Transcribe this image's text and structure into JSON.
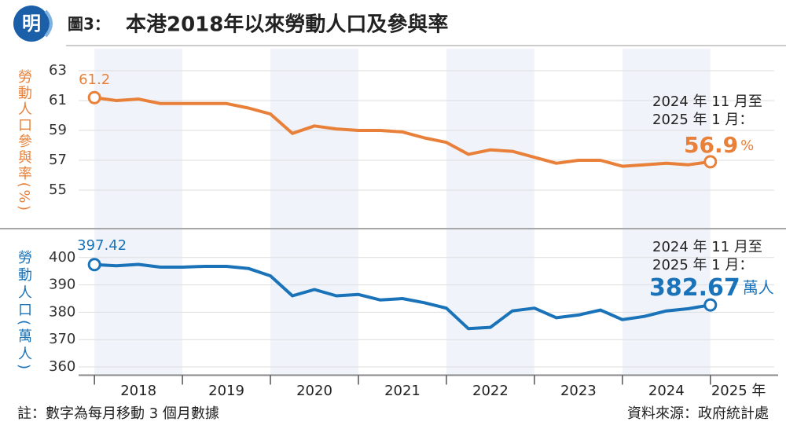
{
  "header": {
    "logo": "明",
    "figure": "圖3：",
    "title": "本港2018年以來勞動人口及參與率"
  },
  "chart_data": [
    {
      "type": "line",
      "ylabel": "勞動人口參與率(%)",
      "color": "#e8803a",
      "unit": "%",
      "annotation": [
        "2024 年 11 月至",
        "2025 年 1 月："
      ],
      "x": [
        2018,
        2018.25,
        2018.5,
        2018.75,
        2019,
        2019.25,
        2019.5,
        2019.75,
        2020,
        2020.25,
        2020.5,
        2020.75,
        2021,
        2021.25,
        2021.5,
        2021.75,
        2022,
        2022.25,
        2022.5,
        2022.75,
        2023,
        2023.25,
        2023.5,
        2023.75,
        2024,
        2024.25,
        2024.5,
        2024.75,
        2025
      ],
      "values": [
        61.2,
        61.0,
        61.1,
        60.8,
        60.8,
        60.8,
        60.8,
        60.5,
        60.1,
        58.8,
        59.3,
        59.1,
        59.0,
        59.0,
        58.9,
        58.5,
        58.2,
        57.4,
        57.7,
        57.6,
        57.2,
        56.8,
        57.0,
        57.0,
        56.6,
        56.7,
        56.8,
        56.7,
        56.9
      ],
      "xlim": [
        2017.82,
        2025.77
      ],
      "ylim": [
        53.5,
        64
      ],
      "yticks": [
        63,
        61,
        59,
        57,
        55
      ],
      "grid": true
    },
    {
      "type": "line",
      "ylabel": "勞動人口(萬人)",
      "color": "#1a73b8",
      "unit": "萬人",
      "annotation": [
        "2024 年 11 月至",
        "2025 年 1 月："
      ],
      "x": [
        2018,
        2018.25,
        2018.5,
        2018.75,
        2019,
        2019.25,
        2019.5,
        2019.75,
        2020,
        2020.25,
        2020.5,
        2020.75,
        2021,
        2021.25,
        2021.5,
        2021.75,
        2022,
        2022.25,
        2022.5,
        2022.75,
        2023,
        2023.25,
        2023.5,
        2023.75,
        2024,
        2024.25,
        2024.5,
        2024.75,
        2025
      ],
      "values": [
        397.42,
        397.0,
        397.5,
        396.5,
        396.5,
        396.8,
        396.8,
        396.0,
        393.3,
        386.0,
        388.3,
        386.0,
        386.5,
        384.5,
        385.0,
        383.5,
        381.5,
        374.0,
        374.5,
        380.5,
        381.5,
        378.0,
        379.0,
        380.8,
        377.3,
        378.5,
        380.5,
        381.3,
        382.67
      ],
      "xlim": [
        2017.82,
        2025.77
      ],
      "ylim": [
        357,
        410
      ],
      "yticks": [
        400,
        390,
        380,
        370,
        360
      ],
      "grid": true,
      "xticks": [
        {
          "value": 2018.5,
          "label": "2018"
        },
        {
          "value": 2019.5,
          "label": "2019"
        },
        {
          "value": 2020.5,
          "label": "2020"
        },
        {
          "value": 2021.5,
          "label": "2021"
        },
        {
          "value": 2022.5,
          "label": "2022"
        },
        {
          "value": 2023.5,
          "label": "2023"
        },
        {
          "value": 2024.5,
          "label": "2024"
        },
        {
          "value": 2025.32,
          "label": "2025 年"
        }
      ],
      "year_marks": [
        2018,
        2019,
        2020,
        2021,
        2022,
        2023,
        2024,
        2025
      ]
    }
  ],
  "footer": {
    "note": "註：數字為每月移動 3 個月數據",
    "source": "資料來源：政府統計處"
  }
}
